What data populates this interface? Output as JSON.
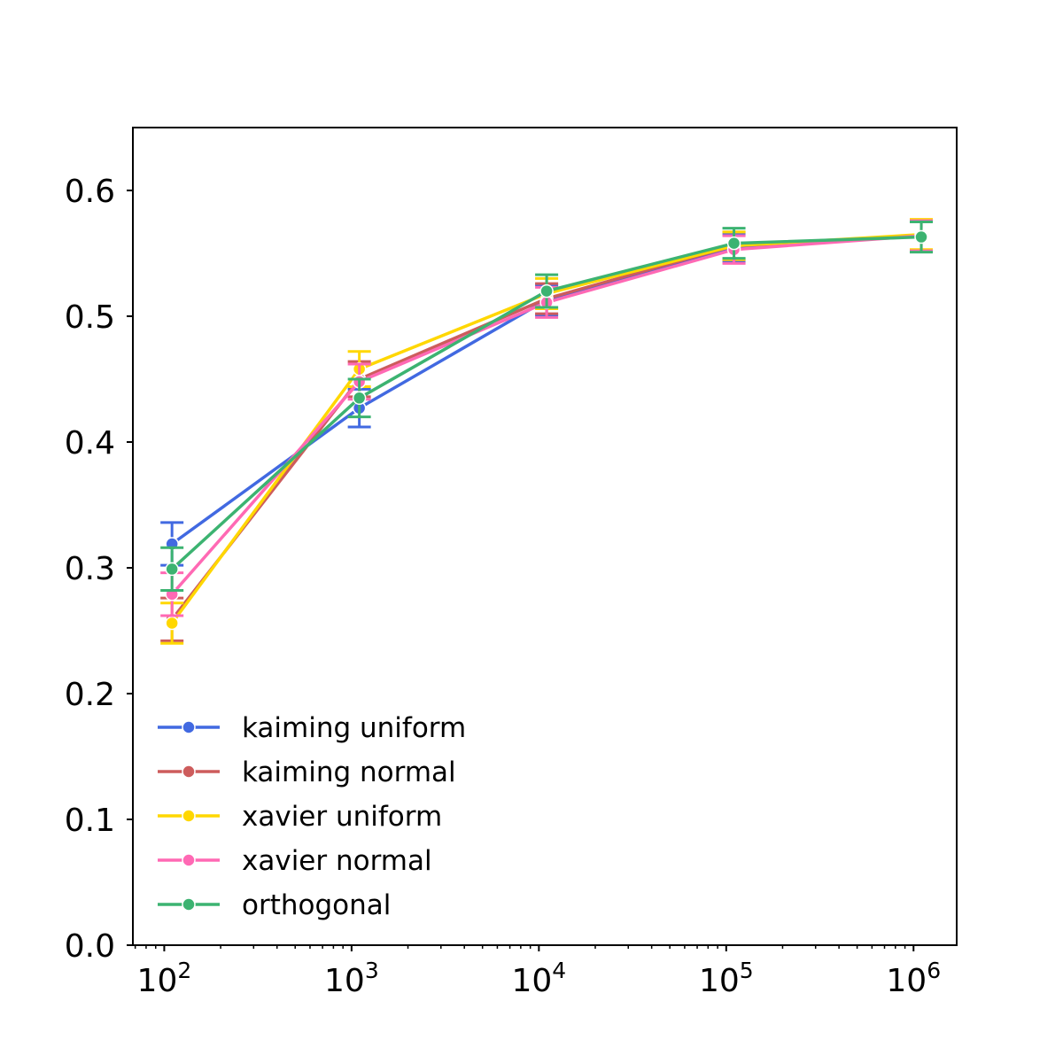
{
  "chart_data": {
    "type": "line",
    "title": "",
    "xlabel": "",
    "ylabel": "",
    "xscale": "log",
    "xlim": [
      68,
      1700000
    ],
    "ylim": [
      0.0,
      0.65
    ],
    "grid": false,
    "legend_position": "lower-left",
    "x_ticks": [
      {
        "value": 100,
        "base": "10",
        "exp": "2"
      },
      {
        "value": 1000,
        "base": "10",
        "exp": "3"
      },
      {
        "value": 10000,
        "base": "10",
        "exp": "4"
      },
      {
        "value": 100000,
        "base": "10",
        "exp": "5"
      },
      {
        "value": 1000000,
        "base": "10",
        "exp": "6"
      }
    ],
    "y_ticks": [
      {
        "value": 0.0,
        "label": "0.0"
      },
      {
        "value": 0.1,
        "label": "0.1"
      },
      {
        "value": 0.2,
        "label": "0.2"
      },
      {
        "value": 0.3,
        "label": "0.3"
      },
      {
        "value": 0.4,
        "label": "0.4"
      },
      {
        "value": 0.5,
        "label": "0.5"
      },
      {
        "value": 0.6,
        "label": "0.6"
      }
    ],
    "x": [
      110,
      1100,
      11000,
      110000,
      1100000
    ],
    "series": [
      {
        "name": "kaiming uniform",
        "color": "#4169e1",
        "values": [
          0.319,
          0.427,
          0.513,
          0.554,
          0.564
        ],
        "err": [
          0.017,
          0.015,
          0.012,
          0.011,
          0.012
        ]
      },
      {
        "name": "kaiming normal",
        "color": "#cd5c5c",
        "values": [
          0.259,
          0.45,
          0.514,
          0.556,
          0.564
        ],
        "err": [
          0.017,
          0.014,
          0.012,
          0.011,
          0.012
        ]
      },
      {
        "name": "xavier uniform",
        "color": "#ffd700",
        "values": [
          0.256,
          0.458,
          0.518,
          0.556,
          0.565
        ],
        "err": [
          0.016,
          0.014,
          0.012,
          0.011,
          0.012
        ]
      },
      {
        "name": "xavier normal",
        "color": "#ff69b4",
        "values": [
          0.279,
          0.448,
          0.511,
          0.553,
          0.564
        ],
        "err": [
          0.017,
          0.014,
          0.012,
          0.011,
          0.012
        ]
      },
      {
        "name": "orthogonal",
        "color": "#3cb371",
        "values": [
          0.299,
          0.435,
          0.52,
          0.558,
          0.563
        ],
        "err": [
          0.017,
          0.015,
          0.013,
          0.012,
          0.012
        ]
      }
    ]
  }
}
